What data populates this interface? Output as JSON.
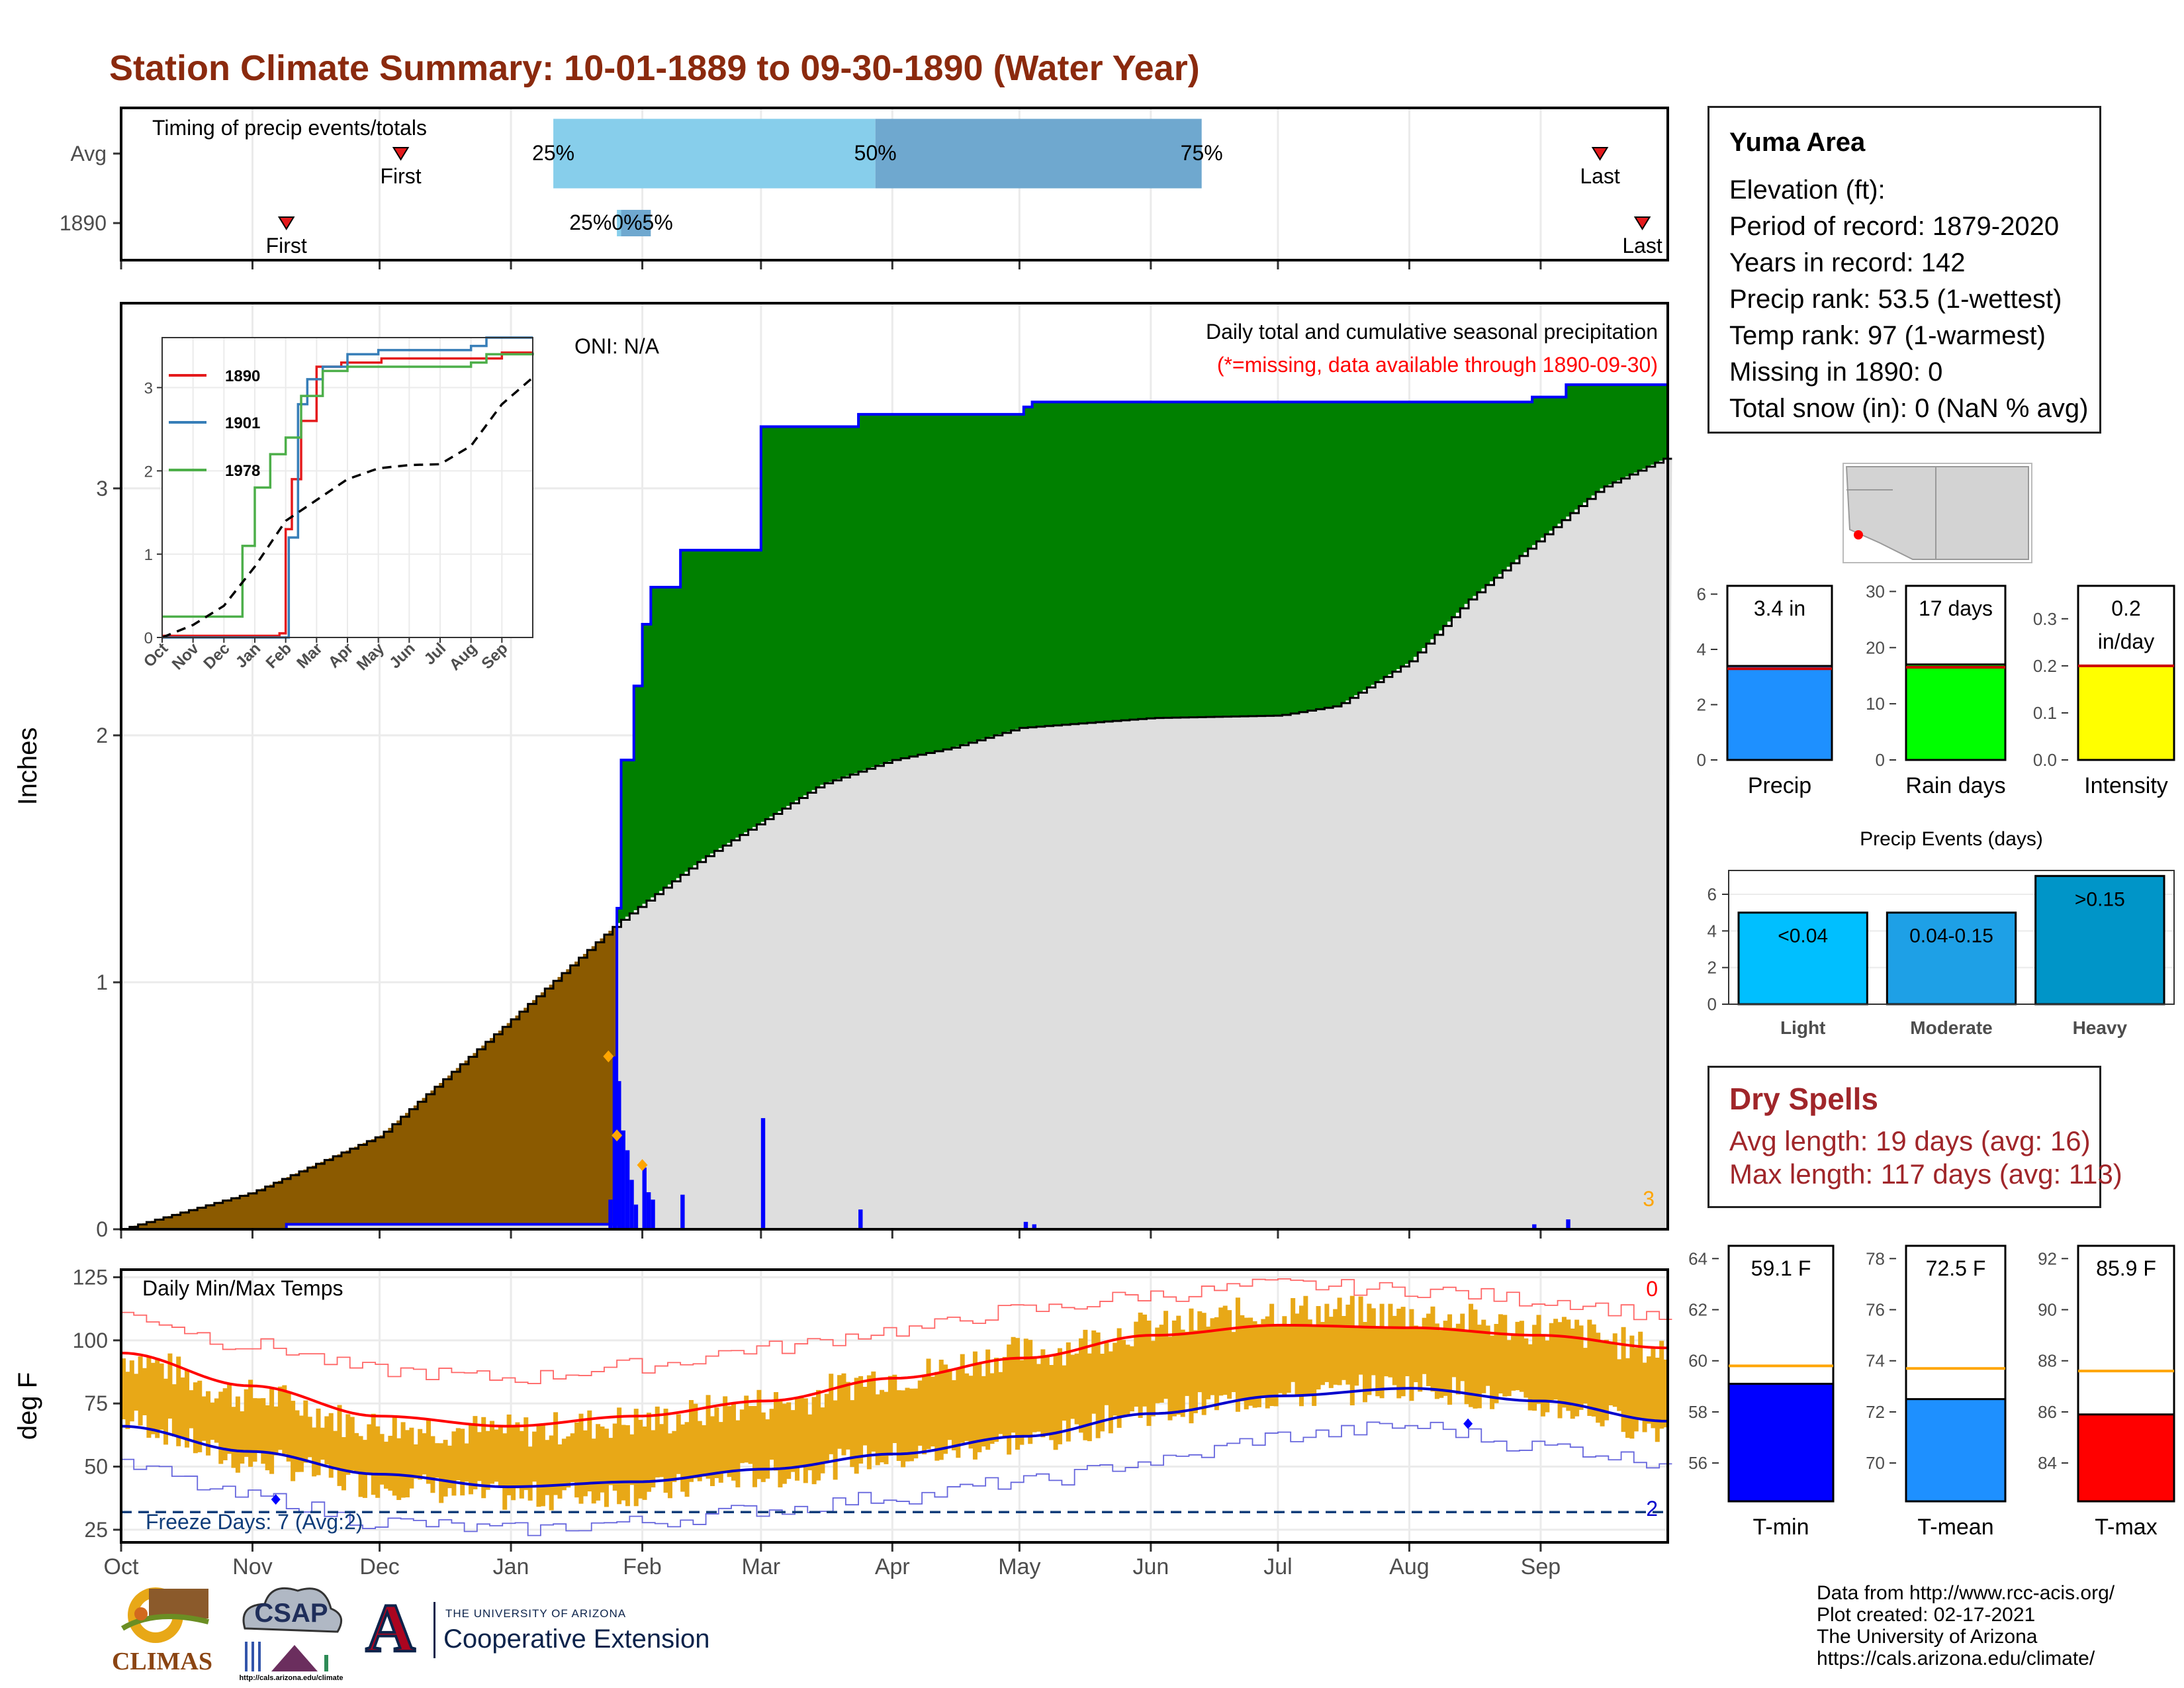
{
  "page": {
    "title": "Station Climate Summary: 10-01-1889 to 09-30-1890 (Water Year)"
  },
  "station": {
    "name": "Yuma Area",
    "lines": [
      "Elevation (ft):",
      "Period of record: 1879-2020",
      "Years in record: 142",
      "Precip rank: 53.5 (1-wettest)",
      "Temp rank: 97 (1-warmest)",
      "Missing in 1890: 0",
      "Total snow (in): 0 (NaN % avg)"
    ]
  },
  "dry_spells": {
    "title": "Dry Spells",
    "avg_length": "Avg length: 19 days (avg: 16)",
    "max_length": "Max length: 117 days (avg: 113)"
  },
  "footer": {
    "lines": [
      "Data from http://www.rcc-acis.org/",
      "Plot created: 02-17-2021",
      "The University of Arizona",
      "https://cals.arizona.edu/climate/"
    ]
  },
  "logos": {
    "climas": "CLIMAS",
    "csap": "CSAP",
    "csap_url": "http://cals.arizona.edu/climate",
    "ua_small": "THE UNIVERSITY OF ARIZONA",
    "ua_big": "Cooperative Extension",
    "ua_letter": "A"
  },
  "colors": {
    "title": "#8B2A0E",
    "precip_blue": "#1E90FF",
    "green": "#008000",
    "brown": "#8B5A00",
    "gray_fill": "#DEDEDE",
    "daily_blue": "#0000FF",
    "temp_bar": "#E8A817",
    "avg_max": "#FF0000",
    "avg_min": "#0000CC",
    "rain_days": "#00FF00",
    "intensity": "#FFFF00",
    "tmin": "#0000FF",
    "tmean": "#1E90FF",
    "tmax": "#FF0000"
  },
  "chart_data": [
    {
      "id": "timing",
      "type": "bar",
      "title": "Timing of precip events/totals",
      "rows": [
        {
          "label": "Avg",
          "first": "Dec 06",
          "last": "Sep 15",
          "p25": "Jan 11",
          "p50": "Mar 28",
          "p75": "Jun 13",
          "p25_label": "25%",
          "p50_label": "50%",
          "p75_label": "75%"
        },
        {
          "label": "1890",
          "first": "Nov 09",
          "last": "Sep 25",
          "p25": "Jan 26",
          "p50": "Jan 27",
          "p75": "Feb 03",
          "marker_label": "25%0%5%"
        }
      ],
      "first_label": "First",
      "last_label": "Last"
    },
    {
      "id": "main_precip",
      "type": "area",
      "title": "Daily total and cumulative seasonal precipitation",
      "subtitle": "(*=missing, data available through 1890-09-30)",
      "oni": "ONI: N/A",
      "ylabel": "Inches",
      "ylim": [
        0,
        3.75
      ],
      "yticks": [
        0,
        1,
        2,
        3
      ],
      "xticks": [
        "Oct",
        "Nov",
        "Dec",
        "Jan",
        "Feb",
        "Mar",
        "Apr",
        "May",
        "Jun",
        "Jul",
        "Aug",
        "Sep"
      ],
      "missing_count_label": "3",
      "cumulative_1890": [
        [
          "1889-10-01",
          0
        ],
        [
          "1889-11-09",
          0.02
        ],
        [
          "1890-01-24",
          0.02
        ],
        [
          "1890-01-26",
          1.3
        ],
        [
          "1890-01-27",
          1.9
        ],
        [
          "1890-01-30",
          2.2
        ],
        [
          "1890-02-01",
          2.45
        ],
        [
          "1890-02-03",
          2.6
        ],
        [
          "1890-02-10",
          2.75
        ],
        [
          "1890-03-01",
          3.25
        ],
        [
          "1890-03-24",
          3.3
        ],
        [
          "1890-05-02",
          3.33
        ],
        [
          "1890-05-04",
          3.35
        ],
        [
          "1890-08-30",
          3.37
        ],
        [
          "1890-09-07",
          3.42
        ],
        [
          "1890-09-30",
          3.42
        ]
      ],
      "avg_cumulative": [
        [
          "1889-10-01",
          0
        ],
        [
          "1889-11-01",
          0.15
        ],
        [
          "1889-12-01",
          0.38
        ],
        [
          "1890-01-01",
          0.85
        ],
        [
          "1890-01-26",
          1.24
        ],
        [
          "1890-02-15",
          1.5
        ],
        [
          "1890-03-01",
          1.65
        ],
        [
          "1890-03-15",
          1.8
        ],
        [
          "1890-04-01",
          1.9
        ],
        [
          "1890-04-15",
          1.95
        ],
        [
          "1890-05-01",
          2.03
        ],
        [
          "1890-06-01",
          2.07
        ],
        [
          "1890-07-01",
          2.08
        ],
        [
          "1890-07-15",
          2.12
        ],
        [
          "1890-08-01",
          2.3
        ],
        [
          "1890-08-15",
          2.55
        ],
        [
          "1890-09-01",
          2.8
        ],
        [
          "1890-09-15",
          3.0
        ],
        [
          "1890-09-30",
          3.12
        ]
      ],
      "daily_1890": [
        [
          "1890-01-24",
          0.12
        ],
        [
          "1890-01-25",
          0.7
        ],
        [
          "1890-01-26",
          0.6
        ],
        [
          "1890-01-27",
          0.4
        ],
        [
          "1890-01-28",
          0.32
        ],
        [
          "1890-01-29",
          0.2
        ],
        [
          "1890-01-30",
          0.1
        ],
        [
          "1890-02-01",
          0.25
        ],
        [
          "1890-02-02",
          0.15
        ],
        [
          "1890-02-03",
          0.12
        ],
        [
          "1890-02-10",
          0.14
        ],
        [
          "1890-03-01",
          0.45
        ],
        [
          "1890-03-24",
          0.08
        ],
        [
          "1890-05-02",
          0.03
        ],
        [
          "1890-05-04",
          0.02
        ],
        [
          "1890-08-30",
          0.02
        ],
        [
          "1890-09-07",
          0.04
        ]
      ],
      "diamonds": [
        [
          "1890-01-24",
          0.7
        ],
        [
          "1890-01-26",
          0.38
        ],
        [
          "1890-02-01",
          0.26
        ]
      ]
    },
    {
      "id": "inset",
      "type": "line",
      "ylim": [
        0,
        3.6
      ],
      "yticks": [
        0,
        1,
        2,
        3
      ],
      "xticks": [
        "Oct",
        "Nov",
        "Dec",
        "Jan",
        "Feb",
        "Mar",
        "Apr",
        "May",
        "Jun",
        "Jul",
        "Aug",
        "Sep"
      ],
      "series": [
        {
          "name": "1890",
          "color": "#E41A1C",
          "points": [
            [
              0,
              0.02
            ],
            [
              3.0,
              0.02
            ],
            [
              3.8,
              0.05
            ],
            [
              4.0,
              1.3
            ],
            [
              4.2,
              1.9
            ],
            [
              4.5,
              2.6
            ],
            [
              5.0,
              3.25
            ],
            [
              5.8,
              3.3
            ],
            [
              7.1,
              3.35
            ],
            [
              11.0,
              3.42
            ],
            [
              12,
              3.42
            ]
          ]
        },
        {
          "name": "1901",
          "color": "#377EB8",
          "points": [
            [
              0,
              0.0
            ],
            [
              3.9,
              0.0
            ],
            [
              4.1,
              1.2
            ],
            [
              4.4,
              2.8
            ],
            [
              4.7,
              3.1
            ],
            [
              5.2,
              3.25
            ],
            [
              6.0,
              3.4
            ],
            [
              7.0,
              3.45
            ],
            [
              10.0,
              3.5
            ],
            [
              10.5,
              3.6
            ],
            [
              12,
              3.6
            ]
          ]
        },
        {
          "name": "1978",
          "color": "#4DAF4A",
          "points": [
            [
              0,
              0.25
            ],
            [
              2.2,
              0.25
            ],
            [
              2.6,
              1.1
            ],
            [
              3.0,
              1.8
            ],
            [
              3.5,
              2.2
            ],
            [
              4.0,
              2.4
            ],
            [
              4.5,
              2.9
            ],
            [
              5.2,
              3.2
            ],
            [
              6.0,
              3.25
            ],
            [
              9.0,
              3.25
            ],
            [
              10.0,
              3.3
            ],
            [
              10.5,
              3.4
            ],
            [
              12,
              3.42
            ]
          ]
        },
        {
          "name": "avg",
          "color": "#000000",
          "dashed": true,
          "points": [
            [
              0,
              0
            ],
            [
              1,
              0.15
            ],
            [
              2,
              0.38
            ],
            [
              3,
              0.85
            ],
            [
              4,
              1.4
            ],
            [
              5,
              1.65
            ],
            [
              6,
              1.9
            ],
            [
              7,
              2.03
            ],
            [
              8,
              2.07
            ],
            [
              9,
              2.08
            ],
            [
              10,
              2.3
            ],
            [
              11,
              2.8
            ],
            [
              12,
              3.12
            ]
          ]
        }
      ]
    },
    {
      "id": "temps",
      "type": "line",
      "title": "Daily Min/Max Temps",
      "ylabel": "deg F",
      "ylim": [
        20,
        128
      ],
      "yticks": [
        25,
        50,
        75,
        100,
        125
      ],
      "xticks": [
        "Oct",
        "Nov",
        "Dec",
        "Jan",
        "Feb",
        "Mar",
        "Apr",
        "May",
        "Jun",
        "Jul",
        "Aug",
        "Sep"
      ],
      "freeze_line": 32,
      "freeze_label": "Freeze Days: 7 (Avg:2)",
      "top_count_label": "0",
      "bottom_count_label": "2",
      "avg_max": [
        [
          0,
          95
        ],
        [
          1,
          82
        ],
        [
          2,
          70
        ],
        [
          3,
          66
        ],
        [
          4,
          70
        ],
        [
          5,
          76
        ],
        [
          6,
          85
        ],
        [
          7,
          93
        ],
        [
          8,
          102
        ],
        [
          9,
          106
        ],
        [
          10,
          105
        ],
        [
          11,
          102
        ],
        [
          12,
          97
        ]
      ],
      "avg_min": [
        [
          0,
          66
        ],
        [
          1,
          56
        ],
        [
          2,
          47
        ],
        [
          3,
          42
        ],
        [
          4,
          44
        ],
        [
          5,
          49
        ],
        [
          6,
          55
        ],
        [
          7,
          62
        ],
        [
          8,
          71
        ],
        [
          9,
          78
        ],
        [
          10,
          81
        ],
        [
          11,
          76
        ],
        [
          12,
          68
        ]
      ],
      "obs_max": [
        [
          0,
          93
        ],
        [
          1,
          78
        ],
        [
          2,
          66
        ],
        [
          3,
          64
        ],
        [
          4,
          68
        ],
        [
          5,
          75
        ],
        [
          6,
          86
        ],
        [
          7,
          95
        ],
        [
          8,
          105
        ],
        [
          9,
          112
        ],
        [
          10,
          110
        ],
        [
          11,
          105
        ],
        [
          12,
          96
        ]
      ],
      "obs_min": [
        [
          0,
          68
        ],
        [
          1,
          52
        ],
        [
          2,
          43
        ],
        [
          3,
          38
        ],
        [
          4,
          40
        ],
        [
          5,
          47
        ],
        [
          6,
          54
        ],
        [
          7,
          60
        ],
        [
          8,
          72
        ],
        [
          9,
          78
        ],
        [
          10,
          82
        ],
        [
          11,
          74
        ],
        [
          12,
          65
        ]
      ],
      "record_max": [
        [
          0,
          110
        ],
        [
          1,
          98
        ],
        [
          2,
          88
        ],
        [
          3,
          85
        ],
        [
          4,
          90
        ],
        [
          5,
          97
        ],
        [
          6,
          104
        ],
        [
          7,
          112
        ],
        [
          8,
          118
        ],
        [
          9,
          122
        ],
        [
          10,
          120
        ],
        [
          11,
          116
        ],
        [
          12,
          110
        ]
      ],
      "record_min": [
        [
          0,
          50
        ],
        [
          1,
          38
        ],
        [
          2,
          28
        ],
        [
          3,
          25
        ],
        [
          4,
          28
        ],
        [
          5,
          33
        ],
        [
          6,
          38
        ],
        [
          7,
          44
        ],
        [
          8,
          52
        ],
        [
          9,
          62
        ],
        [
          10,
          66
        ],
        [
          11,
          58
        ],
        [
          12,
          52
        ]
      ],
      "diamonds": [
        [
          1.2,
          37
        ],
        [
          10.45,
          67
        ]
      ]
    },
    {
      "id": "precip_total",
      "type": "bar",
      "label": "Precip",
      "value": 3.4,
      "avg": 3.3,
      "value_label": "3.4 in",
      "ylim": [
        0,
        6.3
      ],
      "yticks": [
        0,
        2,
        4,
        6
      ]
    },
    {
      "id": "rain_days",
      "type": "bar",
      "label": "Rain days",
      "value": 17,
      "avg": 16.5,
      "value_label": "17 days",
      "ylim": [
        0,
        31
      ],
      "yticks": [
        0,
        10,
        20,
        30
      ]
    },
    {
      "id": "intensity",
      "type": "bar",
      "label": "Intensity",
      "value": 0.2,
      "avg": 0.2,
      "value_label_1": "0.2",
      "value_label_2": "in/day",
      "ylim": [
        0,
        0.37
      ],
      "yticks": [
        0.0,
        0.1,
        0.2,
        0.3
      ]
    },
    {
      "id": "events",
      "type": "bar",
      "title": "Precip Events (days)",
      "categories": [
        "Light",
        "Moderate",
        "Heavy"
      ],
      "bar_labels": [
        "<0.04",
        "0.04-0.15",
        ">0.15"
      ],
      "values": [
        5,
        5,
        7
      ],
      "ylim": [
        0,
        7.3
      ],
      "yticks": [
        0,
        2,
        4,
        6
      ]
    },
    {
      "id": "tmin",
      "type": "bar",
      "label": "T-min",
      "value": 59.1,
      "avg": 59.8,
      "value_label": "59.1 F",
      "ylim": [
        54.5,
        64.5
      ],
      "yticks": [
        56,
        58,
        60,
        62,
        64
      ]
    },
    {
      "id": "tmean",
      "type": "bar",
      "label": "T-mean",
      "value": 72.5,
      "avg": 73.7,
      "value_label": "72.5 F",
      "ylim": [
        68.5,
        78.5
      ],
      "yticks": [
        70,
        72,
        74,
        76,
        78
      ]
    },
    {
      "id": "tmax",
      "type": "bar",
      "label": "T-max",
      "value": 85.9,
      "avg": 87.6,
      "value_label": "85.9 F",
      "ylim": [
        82.5,
        92.5
      ],
      "yticks": [
        84,
        86,
        88,
        90,
        92
      ]
    }
  ]
}
